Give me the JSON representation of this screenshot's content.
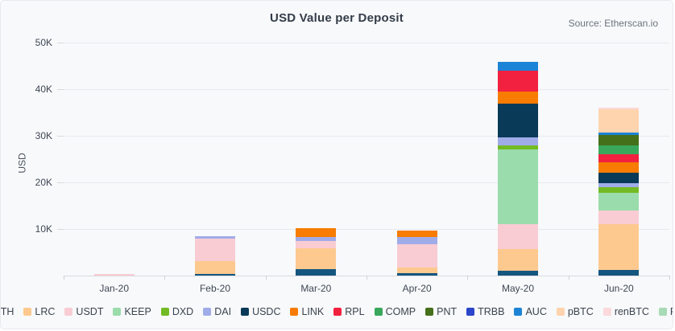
{
  "title": "USD Value per Deposit",
  "source": "Source: Etherscan.io",
  "colors": {
    "background": "#f8f9fb",
    "card_border": "#e7e9ee",
    "gridline": "#e6e9ec",
    "axis_line": "#d8dadd",
    "title_text": "#333c48",
    "source_text": "#6a737e",
    "axis_text": "#3e4753",
    "legend_text": "#3a434e"
  },
  "chart_data": {
    "type": "bar",
    "stacked": true,
    "title": "USD Value per Deposit",
    "xlabel": "",
    "ylabel": "USD",
    "ylim": [
      0,
      50000
    ],
    "ytick_values": [
      10000,
      20000,
      30000,
      40000,
      50000
    ],
    "ytick_labels": [
      "10K",
      "20K",
      "30K",
      "40K",
      "50K"
    ],
    "grid": true,
    "legend_position": "bottom",
    "categories": [
      "Jan-20",
      "Feb-20",
      "Mar-20",
      "Apr-20",
      "May-20",
      "Jun-20"
    ],
    "series": [
      {
        "name": "ETH",
        "color": "#14567f",
        "values": [
          0,
          350,
          1300,
          500,
          1000,
          1200
        ]
      },
      {
        "name": "LRC",
        "color": "#fdc98f",
        "values": [
          0,
          2800,
          4500,
          1300,
          4700,
          9900
        ]
      },
      {
        "name": "USDT",
        "color": "#f9ccd4",
        "values": [
          300,
          4800,
          1600,
          4900,
          5400,
          2800
        ]
      },
      {
        "name": "KEEP",
        "color": "#9adcab",
        "values": [
          0,
          0,
          0,
          0,
          16000,
          3900
        ]
      },
      {
        "name": "DXD",
        "color": "#72bb24",
        "values": [
          0,
          0,
          0,
          0,
          900,
          1100
        ]
      },
      {
        "name": "DAI",
        "color": "#a0ace8",
        "values": [
          0,
          500,
          900,
          1600,
          1600,
          900
        ]
      },
      {
        "name": "USDC",
        "color": "#093a57",
        "values": [
          0,
          0,
          0,
          0,
          7300,
          2300
        ]
      },
      {
        "name": "LINK",
        "color": "#f77c01",
        "values": [
          0,
          0,
          1900,
          1300,
          2600,
          2200
        ]
      },
      {
        "name": "RPL",
        "color": "#f2213f",
        "values": [
          0,
          0,
          0,
          0,
          4500,
          1700
        ]
      },
      {
        "name": "COMP",
        "color": "#3aa85b",
        "values": [
          0,
          0,
          0,
          0,
          0,
          1900
        ]
      },
      {
        "name": "PNT",
        "color": "#45701a",
        "values": [
          0,
          0,
          0,
          0,
          0,
          2300
        ]
      },
      {
        "name": "TRBB",
        "color": "#2b46c8",
        "values": [
          0,
          0,
          0,
          0,
          0,
          0
        ]
      },
      {
        "name": "AUC",
        "color": "#1b84d6",
        "values": [
          0,
          0,
          0,
          0,
          1800,
          500
        ]
      },
      {
        "name": "pBTC",
        "color": "#fed4ae",
        "values": [
          0,
          0,
          0,
          0,
          0,
          5000
        ]
      },
      {
        "name": "renBTC",
        "color": "#fbd9dc",
        "values": [
          0,
          0,
          0,
          0,
          0,
          300
        ]
      },
      {
        "name": "PNK",
        "color": "#a8dab5",
        "values": [
          0,
          0,
          0,
          0,
          0,
          0
        ]
      }
    ]
  }
}
